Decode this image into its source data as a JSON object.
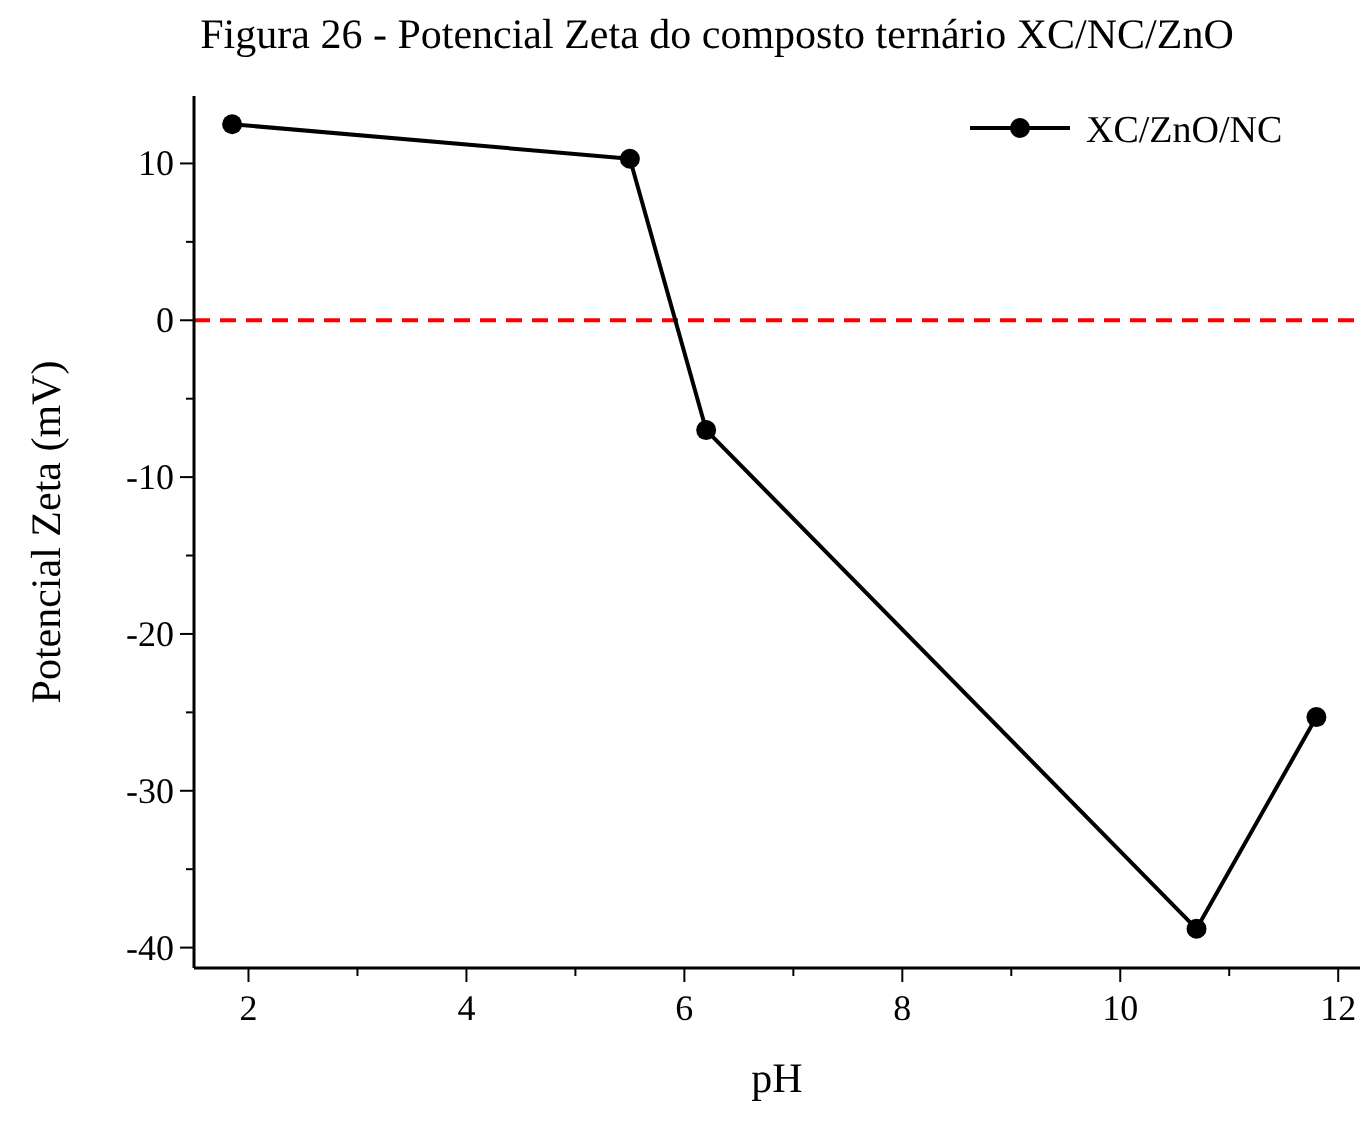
{
  "chart_data": {
    "type": "line",
    "title": "Figura 26 - Potencial Zeta do composto ternário XC/NC/ZnO",
    "xlabel": "pH",
    "ylabel": "Potencial Zeta (mV)",
    "x": [
      1.85,
      5.5,
      6.2,
      10.7,
      11.8
    ],
    "series": [
      {
        "name": "XC/ZnO/NC",
        "color": "#000000",
        "values": [
          12.5,
          10.3,
          -7.0,
          -38.8,
          -25.3
        ]
      }
    ],
    "xlim": [
      1.5,
      12.2
    ],
    "ylim": [
      -41.3,
      14.3
    ],
    "xticks": [
      2,
      4,
      6,
      8,
      10,
      12
    ],
    "yticks": [
      -40,
      -30,
      -20,
      -10,
      0,
      10
    ],
    "ref_lines": [
      {
        "axis": "y",
        "value": 0,
        "label": null,
        "color": "#ff0000",
        "line_style": "dashed"
      }
    ],
    "legend": "top right",
    "marker": "circle",
    "line_style": "solid",
    "grid": false
  }
}
